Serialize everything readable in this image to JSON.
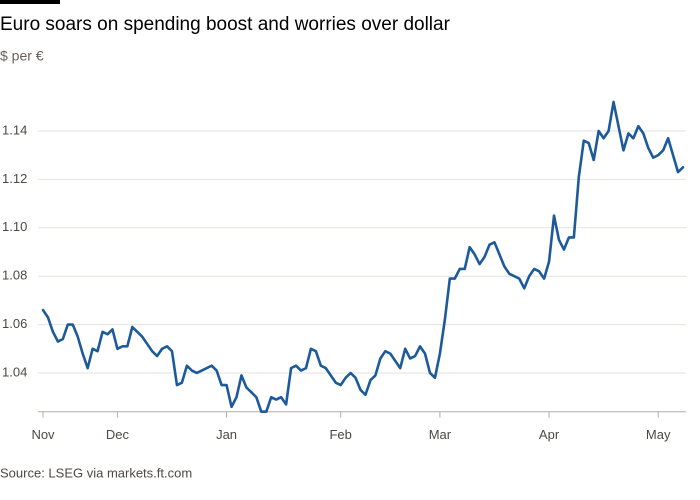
{
  "chart_data": {
    "type": "line",
    "title": "Euro soars on spending boost and worries over dollar",
    "subtitle": "$ per €",
    "source": "Source: LSEG via markets.ft.com",
    "series": [
      {
        "name": "$ per €",
        "color": "#1d5a9c",
        "values": [
          1.066,
          1.063,
          1.057,
          1.053,
          1.054,
          1.06,
          1.06,
          1.055,
          1.048,
          1.042,
          1.05,
          1.049,
          1.057,
          1.056,
          1.058,
          1.05,
          1.051,
          1.051,
          1.059,
          1.057,
          1.055,
          1.052,
          1.049,
          1.047,
          1.05,
          1.051,
          1.049,
          1.035,
          1.036,
          1.043,
          1.041,
          1.04,
          1.041,
          1.042,
          1.043,
          1.041,
          1.035,
          1.035,
          1.026,
          1.03,
          1.039,
          1.034,
          1.032,
          1.03,
          1.024,
          1.024,
          1.03,
          1.029,
          1.03,
          1.027,
          1.042,
          1.043,
          1.041,
          1.042,
          1.05,
          1.049,
          1.043,
          1.042,
          1.039,
          1.036,
          1.035,
          1.038,
          1.04,
          1.038,
          1.033,
          1.031,
          1.037,
          1.039,
          1.046,
          1.049,
          1.048,
          1.045,
          1.042,
          1.05,
          1.046,
          1.047,
          1.051,
          1.048,
          1.04,
          1.038,
          1.048,
          1.062,
          1.079,
          1.079,
          1.083,
          1.083,
          1.092,
          1.089,
          1.085,
          1.088,
          1.093,
          1.094,
          1.089,
          1.084,
          1.081,
          1.08,
          1.079,
          1.075,
          1.08,
          1.083,
          1.082,
          1.079,
          1.086,
          1.105,
          1.095,
          1.091,
          1.096,
          1.096,
          1.121,
          1.136,
          1.135,
          1.128,
          1.14,
          1.137,
          1.14,
          1.152,
          1.142,
          1.132,
          1.139,
          1.137,
          1.142,
          1.139,
          1.133,
          1.129,
          1.13,
          1.132,
          1.137,
          1.13,
          1.123,
          1.125
        ]
      }
    ],
    "xlim": [
      0,
      129
    ],
    "xticks": [
      {
        "value": 0,
        "label": "Nov"
      },
      {
        "value": 15,
        "label": "Dec"
      },
      {
        "value": 37,
        "label": "Jan"
      },
      {
        "value": 60,
        "label": "Feb"
      },
      {
        "value": 80,
        "label": "Mar"
      },
      {
        "value": 102,
        "label": "Apr"
      },
      {
        "value": 124,
        "label": "May"
      }
    ],
    "ylim": [
      1.024,
      1.16
    ],
    "yticks": [
      1.04,
      1.06,
      1.08,
      {
        "value": 1.1,
        "label": "1.10"
      },
      1.12,
      1.14
    ],
    "grid": true
  }
}
